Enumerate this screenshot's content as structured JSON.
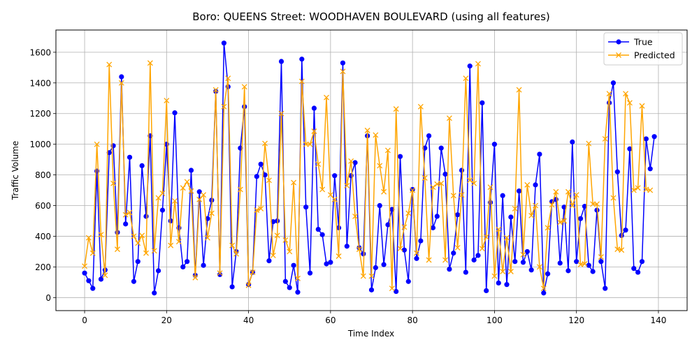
{
  "chart_data": {
    "type": "line",
    "title": "Boro: QUEENS Street: WOODHAVEN BOULEVARD (using all features)",
    "xlabel": "Time Index",
    "ylabel": "Traffic Volume",
    "xlim": [
      -7,
      147
    ],
    "ylim": [
      -85,
      1745
    ],
    "xticks": [
      0,
      20,
      40,
      60,
      80,
      100,
      120,
      140
    ],
    "yticks": [
      0,
      200,
      400,
      600,
      800,
      1000,
      1200,
      1400,
      1600
    ],
    "grid": true,
    "legend_position": "top-right",
    "series": [
      {
        "name": "True",
        "color": "#0000ff",
        "marker": "circle",
        "values": [
          160,
          110,
          60,
          825,
          120,
          180,
          945,
          990,
          425,
          1440,
          480,
          915,
          105,
          235,
          860,
          530,
          1055,
          30,
          175,
          570,
          1000,
          500,
          1205,
          455,
          200,
          235,
          830,
          145,
          690,
          210,
          515,
          635,
          1345,
          150,
          1660,
          1375,
          70,
          300,
          975,
          1245,
          85,
          165,
          790,
          870,
          800,
          240,
          495,
          500,
          1540,
          105,
          65,
          210,
          35,
          1555,
          590,
          160,
          1235,
          445,
          410,
          220,
          230,
          795,
          455,
          1530,
          335,
          795,
          880,
          325,
          285,
          1055,
          50,
          195,
          600,
          215,
          475,
          575,
          40,
          920,
          310,
          105,
          705,
          255,
          370,
          975,
          1055,
          455,
          530,
          975,
          805,
          185,
          290,
          540,
          830,
          165,
          1510,
          245,
          275,
          1270,
          45,
          620,
          1000,
          95,
          665,
          85,
          525,
          235,
          695,
          230,
          300,
          180,
          735,
          935,
          30,
          155,
          625,
          640,
          225,
          590,
          175,
          1015,
          235,
          515,
          595,
          210,
          170,
          570,
          235,
          60,
          1270,
          1400,
          820,
          405,
          440,
          970,
          190,
          165,
          235,
          1035,
          840,
          1050
        ]
      },
      {
        "name": "Predicted",
        "color": "#ffa500",
        "marker": "x",
        "values": [
          205,
          390,
          290,
          1000,
          410,
          145,
          1520,
          745,
          315,
          1400,
          540,
          555,
          400,
          355,
          405,
          290,
          1530,
          305,
          650,
          680,
          1285,
          340,
          630,
          365,
          715,
          755,
          695,
          130,
          640,
          670,
          390,
          550,
          1355,
          160,
          1245,
          1430,
          340,
          285,
          705,
          1375,
          80,
          165,
          570,
          580,
          1005,
          765,
          275,
          405,
          1200,
          375,
          300,
          750,
          125,
          1410,
          1000,
          1000,
          1085,
          870,
          705,
          1305,
          670,
          640,
          270,
          1475,
          730,
          890,
          530,
          315,
          140,
          1090,
          140,
          1060,
          860,
          690,
          960,
          60,
          1230,
          320,
          460,
          550,
          700,
          290,
          1245,
          780,
          245,
          720,
          740,
          745,
          245,
          1170,
          665,
          325,
          670,
          1430,
          765,
          745,
          1525,
          320,
          395,
          720,
          140,
          445,
          170,
          390,
          170,
          580,
          1355,
          280,
          735,
          535,
          600,
          200,
          60,
          455,
          605,
          690,
          490,
          500,
          690,
          600,
          670,
          215,
          220,
          1005,
          610,
          610,
          265,
          1035,
          1330,
          650,
          315,
          310,
          1330,
          1270,
          700,
          715,
          1250,
          705,
          700
        ]
      }
    ]
  }
}
